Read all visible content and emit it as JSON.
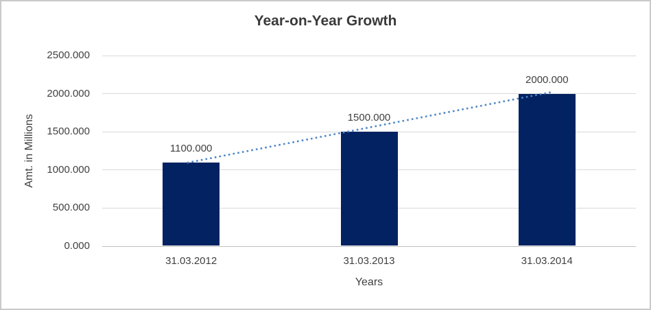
{
  "chart_data": {
    "type": "bar",
    "title": "Year-on-Year Growth",
    "xlabel": "Years",
    "ylabel": "Amt. in Millions",
    "categories": [
      "31.03.2012",
      "31.03.2013",
      "31.03.2014"
    ],
    "values": [
      1100,
      1500,
      2000
    ],
    "data_labels": [
      "1100.000",
      "1500.000",
      "2000.000"
    ],
    "ylim": [
      0,
      2500
    ],
    "ytick_interval": 500,
    "yticks": [
      0,
      500,
      1000,
      1500,
      2000,
      2500
    ],
    "ytick_labels": [
      "0.000",
      "500.000",
      "1000.000",
      "1500.000",
      "2000.000",
      "2500.000"
    ],
    "grid": true,
    "legend": "none",
    "bar_color": "#022261",
    "gridline_color": "#d9d9d9",
    "axis_line_color": "#bfbfbf",
    "text_color": "#404040",
    "trendline": {
      "type": "linear",
      "style": "dotted",
      "color": "#4e86c8",
      "from_value": 1100,
      "to_value": 2000
    }
  }
}
